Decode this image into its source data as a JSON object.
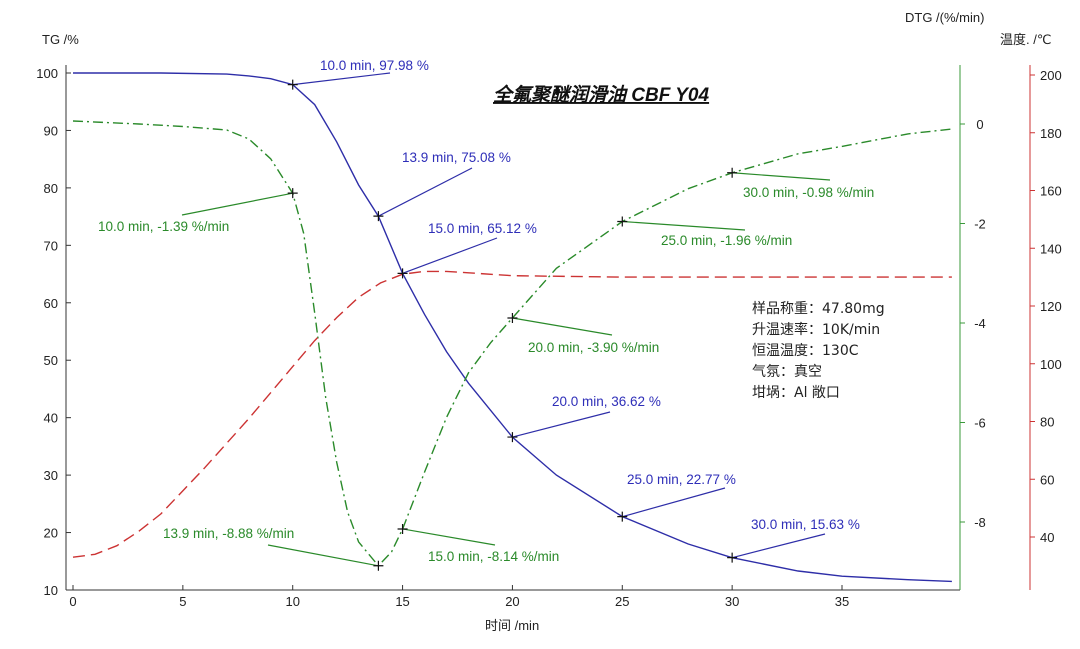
{
  "chart_data": {
    "type": "line",
    "title": "全氟聚醚润滑油 CBF Y04",
    "xlabel": "时间 /min",
    "xlim": [
      0,
      40
    ],
    "xticks": [
      0,
      5,
      10,
      15,
      20,
      25,
      30,
      35
    ],
    "axes": {
      "tg": {
        "label": "TG /%",
        "lim": [
          10,
          100
        ],
        "ticks": [
          10,
          20,
          30,
          40,
          50,
          60,
          70,
          80,
          90,
          100
        ],
        "position": "left"
      },
      "dtg": {
        "label": "DTG /(%/min)",
        "lim": [
          -9.4,
          1.2
        ],
        "ticks": [
          0,
          -2,
          -4,
          -6,
          -8
        ],
        "position": "right-inner"
      },
      "temp": {
        "label": "温度. /℃",
        "lim": [
          21.6,
          203
        ],
        "ticks": [
          40,
          60,
          80,
          100,
          120,
          140,
          160,
          180,
          200
        ],
        "position": "right-outer"
      }
    },
    "grid": false,
    "series": [
      {
        "id": "tg",
        "axis": "tg",
        "color": "#2e2ea8",
        "style": "solid",
        "x": [
          0,
          4,
          7,
          8,
          9,
          10,
          11,
          12,
          13,
          13.9,
          15,
          16,
          17,
          18,
          20,
          22,
          25,
          28,
          30,
          33,
          35,
          38,
          40
        ],
        "y": [
          100,
          100,
          99.8,
          99.5,
          99,
          97.98,
          94.5,
          88,
          80.5,
          75.08,
          65.12,
          58,
          51.5,
          46,
          36.62,
          30,
          22.77,
          18,
          15.63,
          13.3,
          12.4,
          11.8,
          11.5
        ]
      },
      {
        "id": "dtg",
        "axis": "dtg",
        "color": "#2a8a2a",
        "style": "dashdot",
        "x": [
          0,
          3,
          5,
          7,
          8,
          9,
          10,
          10.5,
          11,
          11.5,
          12,
          12.5,
          13,
          13.9,
          14.5,
          15,
          16,
          17,
          18,
          19,
          20,
          22,
          25,
          28,
          30,
          33,
          35,
          38,
          40
        ],
        "y": [
          0.06,
          0,
          -0.05,
          -0.12,
          -0.3,
          -0.7,
          -1.39,
          -2.2,
          -3.8,
          -5.5,
          -6.8,
          -7.8,
          -8.4,
          -8.88,
          -8.6,
          -8.14,
          -7.0,
          -5.9,
          -5.0,
          -4.4,
          -3.9,
          -2.9,
          -1.96,
          -1.3,
          -0.98,
          -0.6,
          -0.45,
          -0.2,
          -0.1
        ]
      },
      {
        "id": "temp",
        "axis": "temp",
        "color": "#cc3333",
        "style": "dashed",
        "x": [
          0,
          1,
          2,
          3,
          4,
          6,
          8,
          10,
          11,
          12,
          13,
          14,
          15,
          16,
          17,
          18,
          20,
          25,
          30,
          35,
          40
        ],
        "y": [
          33,
          34,
          37,
          42,
          48,
          64,
          81,
          99,
          108,
          116,
          123,
          128,
          131,
          132,
          132,
          131.5,
          130.5,
          130,
          130,
          130,
          130
        ]
      }
    ],
    "annotations": [
      {
        "series": "tg",
        "x": 10.0,
        "y": 97.98,
        "label": "10.0 min, 97.98 %"
      },
      {
        "series": "tg",
        "x": 13.9,
        "y": 75.08,
        "label": "13.9 min, 75.08 %"
      },
      {
        "series": "tg",
        "x": 15.0,
        "y": 65.12,
        "label": "15.0 min, 65.12 %"
      },
      {
        "series": "tg",
        "x": 20.0,
        "y": 36.62,
        "label": "20.0 min, 36.62 %"
      },
      {
        "series": "tg",
        "x": 25.0,
        "y": 22.77,
        "label": "25.0 min, 22.77 %"
      },
      {
        "series": "tg",
        "x": 30.0,
        "y": 15.63,
        "label": "30.0 min, 15.63 %"
      },
      {
        "series": "dtg",
        "x": 10.0,
        "y": -1.39,
        "label": "10.0 min, -1.39 %/min"
      },
      {
        "series": "dtg",
        "x": 13.9,
        "y": -8.88,
        "label": "13.9 min, -8.88 %/min"
      },
      {
        "series": "dtg",
        "x": 15.0,
        "y": -8.14,
        "label": "15.0 min, -8.14 %/min"
      },
      {
        "series": "dtg",
        "x": 20.0,
        "y": -3.9,
        "label": "20.0 min, -3.90 %/min"
      },
      {
        "series": "dtg",
        "x": 25.0,
        "y": -1.96,
        "label": "25.0 min, -1.96 %/min"
      },
      {
        "series": "dtg",
        "x": 30.0,
        "y": -0.98,
        "label": "30.0 min, -0.98 %/min"
      }
    ],
    "info": [
      "样品称重：47.80mg",
      "升温速率：10K/min",
      "恒温温度：130C",
      "气氛：真空",
      "坩埚：Al 敞口"
    ]
  }
}
